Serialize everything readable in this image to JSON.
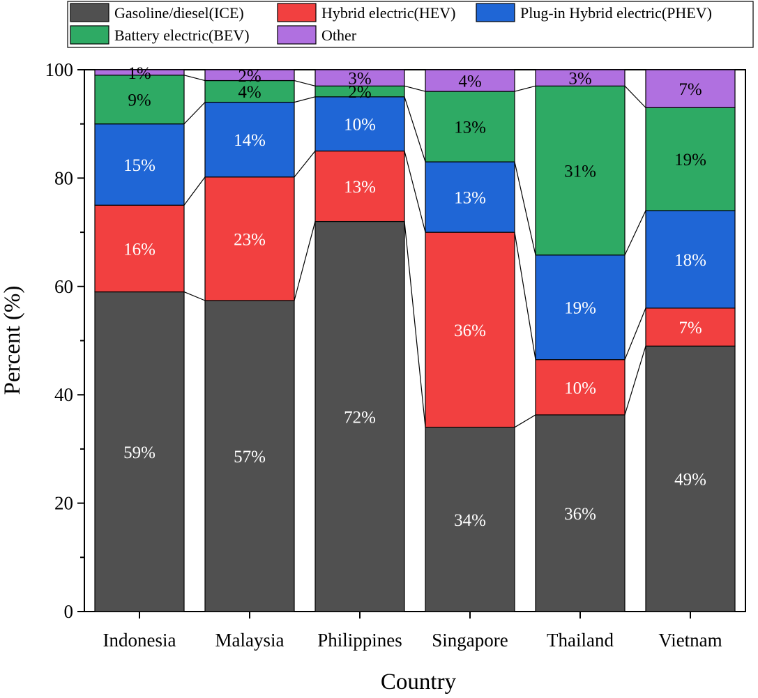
{
  "chart_data": {
    "type": "bar",
    "stacked": true,
    "categories": [
      "Indonesia",
      "Malaysia",
      "Philippines",
      "Singapore",
      "Thailand",
      "Vietnam"
    ],
    "series": [
      {
        "name": "Gasoline/diesel(ICE)",
        "color": "#505050",
        "label_color": "#ffffff",
        "values": [
          59,
          57.4,
          72,
          34,
          36.3,
          49
        ],
        "labels": [
          "59%",
          "57%",
          "72%",
          "34%",
          "36%",
          "49%"
        ]
      },
      {
        "name": "Hybrid electric(HEV)",
        "color": "#f24040",
        "label_color": "#ffffff",
        "values": [
          16,
          22.8,
          13,
          36,
          10.2,
          7
        ],
        "labels": [
          "16%",
          "23%",
          "13%",
          "36%",
          "10%",
          "7%"
        ]
      },
      {
        "name": "Plug-in Hybrid electric(PHEV)",
        "color": "#1f66d6",
        "label_color": "#ffffff",
        "values": [
          15,
          13.8,
          10,
          13,
          19.3,
          18
        ],
        "labels": [
          "15%",
          "14%",
          "10%",
          "13%",
          "19%",
          "18%"
        ]
      },
      {
        "name": "Battery electric(BEV)",
        "color": "#2eaa64",
        "label_color": "#000000",
        "values": [
          9,
          4,
          2,
          13,
          31.2,
          19
        ],
        "labels": [
          "9%",
          "4%",
          "2%",
          "13%",
          "31%",
          "19%"
        ]
      },
      {
        "name": "Other",
        "color": "#b070e0",
        "label_color": "#000000",
        "values": [
          1,
          2,
          3,
          4,
          3,
          7
        ],
        "labels": [
          "1%",
          "2%",
          "3%",
          "4%",
          "3%",
          "7%"
        ]
      }
    ],
    "xlabel": "Country",
    "ylabel": "Percent (%)",
    "ylim": [
      0,
      100
    ],
    "yticks": [
      "0",
      "20",
      "40",
      "60",
      "80",
      "100"
    ],
    "legend_position": "top",
    "grid": false,
    "connector_lines": true
  }
}
